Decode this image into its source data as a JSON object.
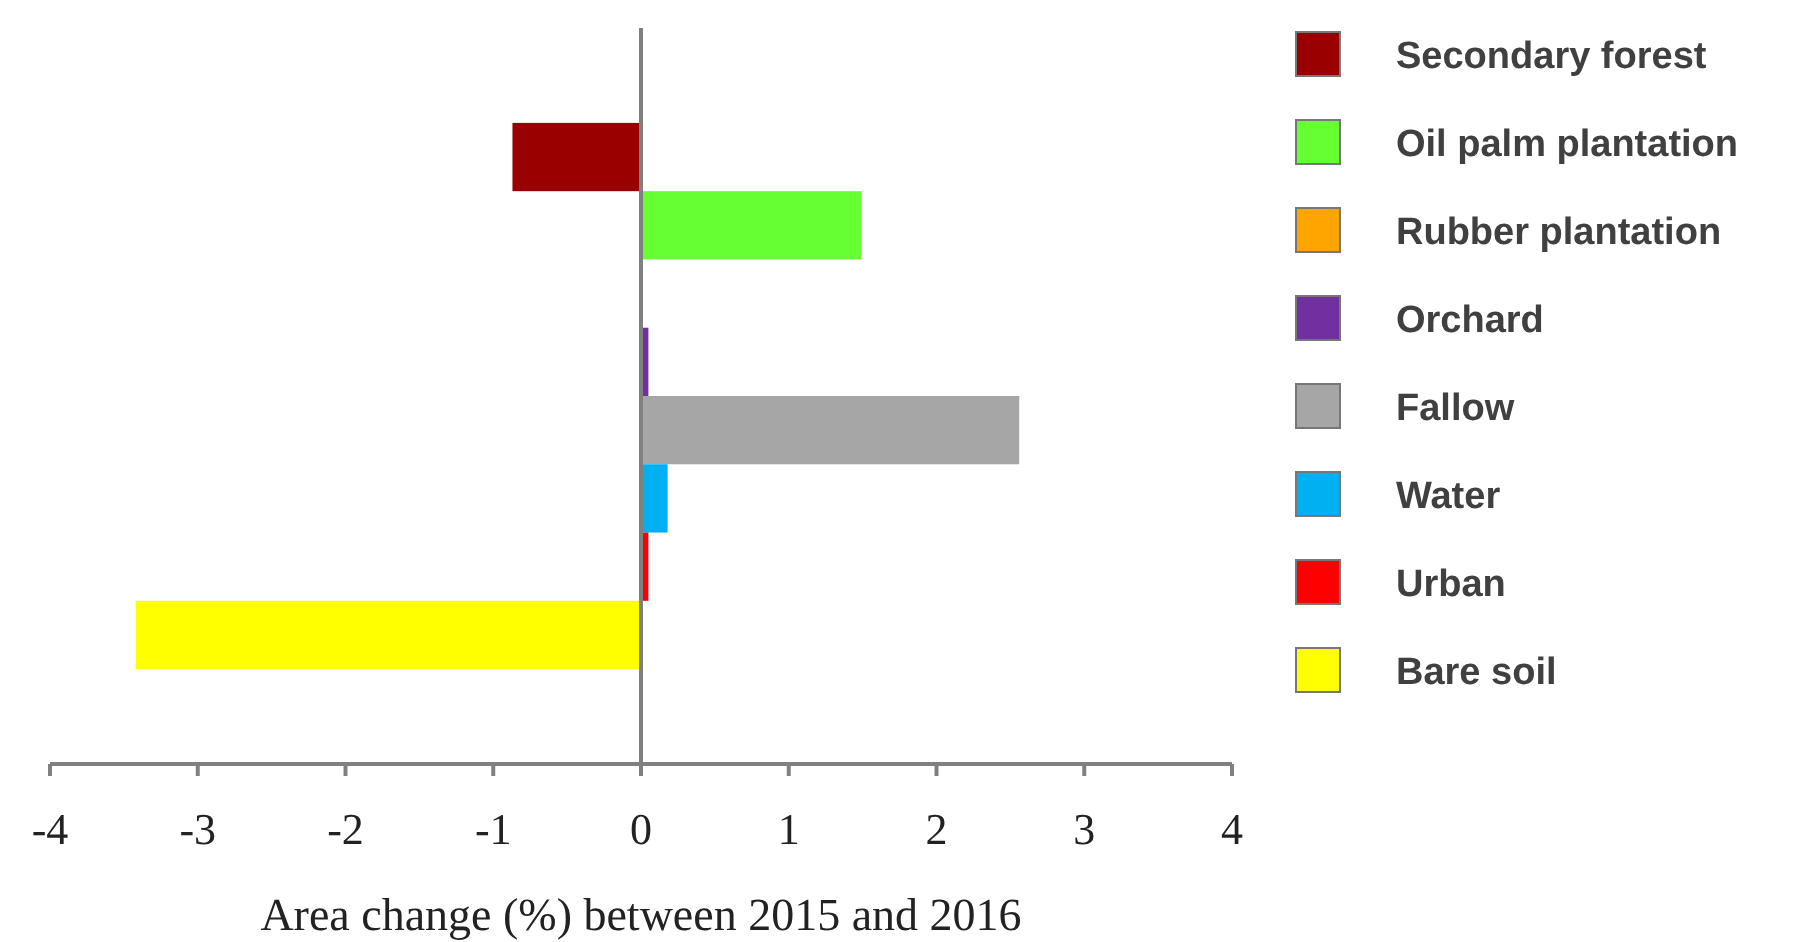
{
  "chart_data": {
    "type": "bar",
    "orientation": "horizontal",
    "xlabel": "Area change (%) between 2015 and 2016",
    "categories": [
      null
    ],
    "series": [
      {
        "name": "Secondary forest",
        "color": "#990000",
        "values": [
          -0.87
        ]
      },
      {
        "name": "Oil palm plantation",
        "color": "#66ff33",
        "values": [
          1.49
        ]
      },
      {
        "name": "Rubber plantation",
        "color": "#ffa500",
        "values": [
          0
        ]
      },
      {
        "name": "Orchard",
        "color": "#7030a0",
        "values": [
          0.05
        ]
      },
      {
        "name": "Fallow",
        "color": "#a6a6a6",
        "values": [
          2.56
        ]
      },
      {
        "name": "Water",
        "color": "#00b0f0",
        "values": [
          0.18
        ]
      },
      {
        "name": "Urban",
        "color": "#ff0000",
        "values": [
          0.05
        ]
      },
      {
        "name": "Bare soil",
        "color": "#ffff00",
        "values": [
          -3.42
        ]
      }
    ],
    "xlim": [
      -4,
      4
    ],
    "xticks": [
      -4,
      -3,
      -2,
      -1,
      0,
      1,
      2,
      3,
      4
    ],
    "legend": "right"
  }
}
